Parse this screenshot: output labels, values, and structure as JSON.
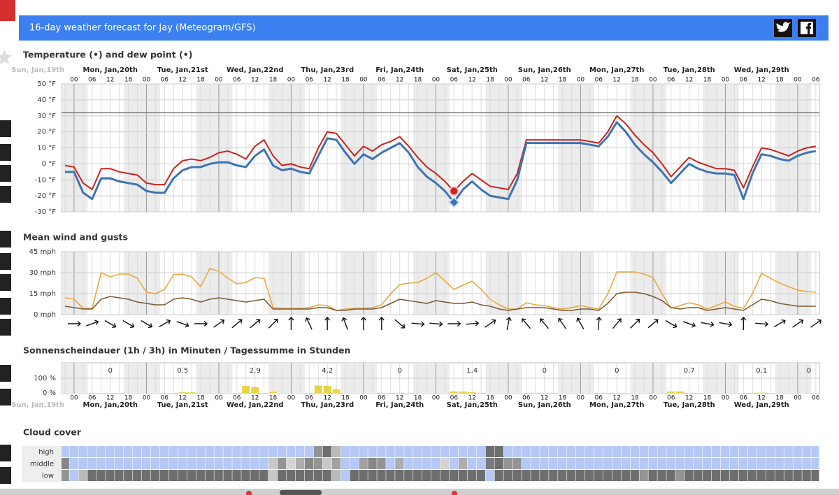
{
  "header": {
    "title": "16-day weather forecast for Jay (Meteogram/GFS)"
  },
  "time_axis": {
    "days": [
      "Sun, Jan,19th",
      "Mon, Jan,20th",
      "Tue, Jan,21st",
      "Wed, Jan,22nd",
      "Thu, Jan,23rd",
      "Fri, Jan,24th",
      "Sat, Jan,25th",
      "Sun, Jan,26th",
      "Mon, Jan,27th",
      "Tue, Jan,28th",
      "Wed, Jan,29th"
    ],
    "categories": [
      null,
      "00",
      null,
      "06",
      null,
      "12",
      null,
      "18",
      null,
      "00",
      null,
      "06",
      null,
      "12",
      null,
      "18",
      null,
      "00",
      null,
      "06",
      null,
      "12",
      null,
      "18",
      null,
      "00",
      null,
      "06",
      null,
      "12",
      null,
      "18",
      null,
      "00",
      null,
      "06",
      null,
      "12",
      null,
      "18",
      null,
      "00",
      null,
      "06",
      null,
      "12",
      null,
      "18",
      null,
      "00",
      null,
      "06",
      null,
      "12",
      null,
      "18",
      null,
      "00",
      null,
      "06",
      null,
      "12",
      null,
      "18",
      null,
      "00",
      null,
      "06",
      null,
      "12",
      null,
      "18",
      null,
      "00",
      null,
      "06",
      null,
      "12",
      null,
      "18",
      null,
      "00",
      null,
      "06"
    ]
  },
  "chart_data": [
    {
      "type": "line",
      "title": "Temperature (•) and dew point (•)",
      "ylim": [
        -30,
        50
      ],
      "yticks": [
        {
          "value": -30,
          "label": "-30 °F"
        },
        {
          "value": -20,
          "label": "-20 °F"
        },
        {
          "value": -10,
          "label": "-10 °F"
        },
        {
          "value": 0,
          "label": "0 °F"
        },
        {
          "value": 10,
          "label": "10 °F"
        },
        {
          "value": 20,
          "label": "20 °F"
        },
        {
          "value": 30,
          "label": "30 °F"
        },
        {
          "value": 40,
          "label": "40 °F"
        },
        {
          "value": 50,
          "label": "50 °F"
        }
      ],
      "reference_line": 32,
      "grid": true,
      "series": [
        {
          "color": "#c9231d",
          "values": [
            -1,
            -2,
            -12,
            -16,
            -3,
            -3,
            -5,
            -6,
            -7,
            -12,
            -13,
            -13,
            -3,
            2,
            3,
            2,
            4,
            7,
            8,
            6,
            3,
            11,
            15,
            5,
            -1,
            0,
            -2,
            -3,
            10,
            20,
            19,
            12,
            5,
            11,
            8,
            12,
            14,
            17,
            11,
            4,
            -2,
            -6,
            -11,
            -17,
            -11,
            -6,
            -10,
            -14,
            -15,
            -16,
            -6,
            15,
            15,
            15,
            15,
            15,
            15,
            15,
            14,
            13,
            20,
            30,
            25,
            18,
            12,
            7,
            0,
            -8,
            -2,
            4,
            1,
            -1,
            -3,
            -3,
            -4,
            -15,
            -2,
            10,
            9,
            7,
            5,
            8,
            10,
            11
          ]
        },
        {
          "color": "#3f74b4",
          "values": [
            -5,
            -5,
            -18,
            -22,
            -9,
            -9,
            -11,
            -12,
            -13,
            -17,
            -18,
            -18,
            -9,
            -4,
            -2,
            -2,
            0,
            1,
            1,
            -1,
            -2,
            5,
            9,
            -1,
            -4,
            -3,
            -5,
            -6,
            5,
            16,
            15,
            7,
            0,
            6,
            3,
            7,
            10,
            13,
            7,
            -2,
            -8,
            -12,
            -17,
            -24,
            -16,
            -11,
            -16,
            -20,
            -21,
            -22,
            -10,
            13,
            13,
            13,
            13,
            13,
            13,
            13,
            12,
            11,
            17,
            26,
            20,
            12,
            6,
            1,
            -5,
            -12,
            -6,
            0,
            -3,
            -5,
            -6,
            -6,
            -7,
            -22,
            -6,
            6,
            5,
            3,
            2,
            5,
            7,
            8
          ]
        }
      ]
    },
    {
      "type": "line",
      "title": "Mean wind and gusts",
      "ylim": [
        0,
        45
      ],
      "yticks": [
        {
          "value": 0,
          "label": "0 mph"
        },
        {
          "value": 15,
          "label": "15 mph"
        },
        {
          "value": 30,
          "label": "30 mph"
        },
        {
          "value": 45,
          "label": "45 mph"
        }
      ],
      "grid": true,
      "series": [
        {
          "color": "#e9a93b",
          "values": [
            12,
            11,
            4.5,
            4.5,
            30,
            27,
            29,
            29,
            26,
            16,
            15,
            18,
            28.5,
            29,
            27,
            20,
            33,
            31,
            26,
            22,
            23,
            26.5,
            26,
            5,
            4.5,
            4.5,
            4.5,
            5,
            7,
            6.5,
            3,
            4,
            4.5,
            4.5,
            5,
            7,
            15,
            21.5,
            22.5,
            23,
            26,
            30,
            24,
            18,
            21,
            24,
            18,
            11,
            7,
            4,
            4,
            8.5,
            7,
            6.5,
            5,
            4,
            5,
            6.5,
            5,
            4,
            15,
            30.5,
            30.5,
            30.5,
            29,
            26.5,
            15,
            4.5,
            6.5,
            8.5,
            7,
            4,
            6.5,
            9,
            6,
            4.5,
            15,
            29.5,
            26,
            22.5,
            20,
            17.5,
            16.5,
            16
          ]
        },
        {
          "color": "#7b5a36",
          "values": [
            6,
            5,
            4,
            4,
            11,
            13,
            12,
            11,
            9,
            8,
            7,
            7,
            11,
            12,
            11,
            9,
            11,
            12,
            11,
            10,
            9,
            10,
            11,
            4,
            4,
            4,
            4,
            4,
            5,
            5,
            3,
            3,
            4,
            4,
            4,
            5,
            8,
            11,
            10,
            9,
            8,
            10,
            9,
            8,
            8,
            9,
            7,
            6,
            4,
            3,
            4,
            5,
            5,
            5,
            4,
            3,
            3,
            4,
            4,
            3,
            8,
            15,
            16,
            16,
            15,
            13,
            10,
            5,
            4,
            5,
            5,
            3,
            4,
            5,
            4,
            3,
            7,
            11,
            10,
            8,
            7,
            6,
            6,
            6
          ]
        }
      ],
      "wind_direction": [
        null,
        270,
        null,
        250,
        null,
        300,
        null,
        300,
        null,
        300,
        null,
        240,
        null,
        290,
        null,
        270,
        null,
        235,
        null,
        230,
        null,
        230,
        null,
        225,
        null,
        180,
        null,
        155,
        null,
        180,
        null,
        160,
        null,
        180,
        null,
        180,
        null,
        310,
        null,
        275,
        null,
        275,
        null,
        270,
        null,
        265,
        null,
        235,
        null,
        190,
        null,
        140,
        null,
        140,
        null,
        145,
        null,
        150,
        null,
        185,
        null,
        220,
        null,
        225,
        null,
        230,
        null,
        300,
        null,
        290,
        null,
        280,
        null,
        280,
        null,
        180,
        null,
        275,
        null,
        240,
        null,
        235,
        null,
        235
      ]
    },
    {
      "type": "bar",
      "title": "Sonnenscheindauer (1h / 3h) in Minuten / Tagessumme in Stunden",
      "ylim": [
        0,
        100
      ],
      "yticks": [
        {
          "value": 0,
          "label": "0 %"
        },
        {
          "value": 100,
          "label": "100 %"
        }
      ],
      "color": "#e7d447",
      "values": [
        0,
        0,
        0,
        0,
        0,
        0,
        0,
        0,
        0,
        0,
        0,
        0,
        0,
        4,
        4,
        0,
        0,
        0,
        0,
        0,
        48,
        40,
        0,
        8,
        0,
        0,
        0,
        0,
        50,
        48,
        25,
        0,
        0,
        0,
        0,
        0,
        0,
        0,
        0,
        0,
        0,
        0,
        0,
        10,
        10,
        5,
        0,
        0,
        0,
        0,
        0,
        0,
        0,
        0,
        0,
        0,
        0,
        0,
        0,
        0,
        0,
        0,
        0,
        0,
        0,
        0,
        0,
        10,
        10,
        0,
        0,
        0,
        0,
        0,
        0,
        0,
        0,
        2,
        0,
        0,
        0,
        0,
        0,
        0
      ],
      "daily_totals": [
        0,
        0.5,
        2.9,
        4.2,
        0,
        1.4,
        0,
        0,
        0.7,
        0.1,
        0
      ]
    },
    {
      "type": "heatmap",
      "title": "Cloud cover",
      "series": [
        {
          "name": "high",
          "values": [
            0,
            0,
            0,
            0,
            0,
            0,
            0,
            0,
            0,
            0,
            0,
            0,
            0,
            0,
            0,
            0,
            0,
            0,
            0,
            0,
            0,
            0,
            0,
            0,
            0,
            0,
            0,
            0,
            60,
            90,
            30,
            0,
            0,
            0,
            0,
            0,
            0,
            0,
            0,
            0,
            0,
            0,
            0,
            0,
            0,
            0,
            0,
            90,
            90,
            0,
            0,
            0,
            0,
            0,
            0,
            0,
            0,
            0,
            0,
            0,
            0,
            0,
            0,
            0,
            0,
            0,
            0,
            0,
            0,
            0,
            0,
            0,
            0,
            0,
            0,
            0,
            0,
            0,
            0,
            0,
            0,
            0,
            0,
            0
          ]
        },
        {
          "name": "middle",
          "values": [
            70,
            0,
            0,
            0,
            0,
            0,
            0,
            0,
            0,
            0,
            0,
            0,
            0,
            0,
            0,
            0,
            0,
            0,
            0,
            0,
            0,
            0,
            0,
            20,
            60,
            10,
            40,
            70,
            60,
            20,
            50,
            0,
            0,
            50,
            70,
            60,
            0,
            40,
            0,
            0,
            0,
            0,
            10,
            0,
            40,
            0,
            0,
            80,
            90,
            60,
            60,
            0,
            0,
            0,
            0,
            0,
            0,
            0,
            0,
            0,
            0,
            0,
            0,
            0,
            0,
            0,
            0,
            0,
            0,
            0,
            0,
            0,
            0,
            0,
            0,
            0,
            0,
            0,
            0,
            0,
            0,
            0,
            0,
            0
          ]
        },
        {
          "name": "low",
          "values": [
            60,
            0,
            30,
            90,
            90,
            90,
            90,
            90,
            90,
            90,
            90,
            90,
            90,
            90,
            90,
            90,
            90,
            90,
            90,
            90,
            90,
            90,
            90,
            20,
            90,
            90,
            90,
            90,
            90,
            90,
            30,
            0,
            90,
            90,
            90,
            90,
            90,
            90,
            90,
            90,
            90,
            90,
            90,
            90,
            90,
            90,
            90,
            0,
            90,
            90,
            90,
            90,
            90,
            90,
            90,
            90,
            90,
            90,
            90,
            90,
            90,
            90,
            90,
            90,
            60,
            90,
            90,
            90,
            60,
            90,
            90,
            90,
            90,
            90,
            90,
            90,
            90,
            90,
            90,
            90,
            90,
            90,
            90,
            90
          ]
        }
      ]
    }
  ]
}
